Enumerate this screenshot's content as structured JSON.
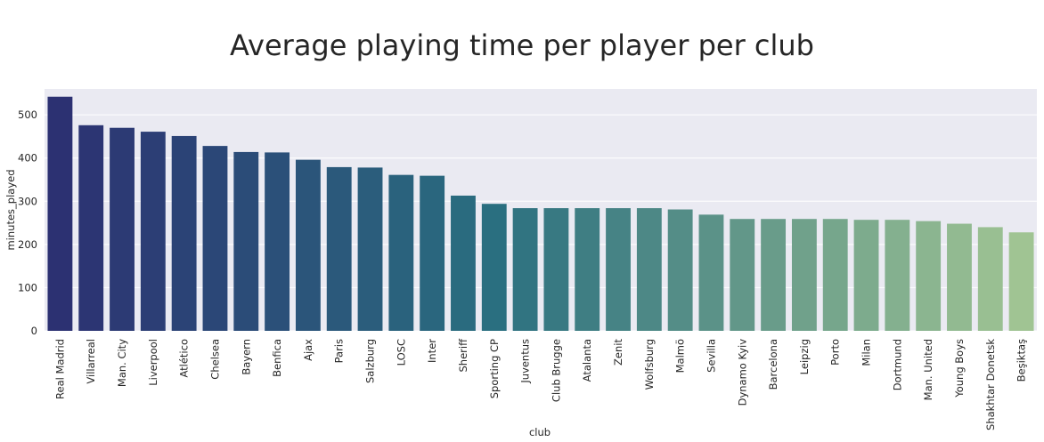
{
  "chart_data": {
    "type": "bar",
    "title": "Average playing time per player per club",
    "xlabel": "club",
    "ylabel": "minutes_played",
    "ylim": [
      0,
      560
    ],
    "yticks": [
      0,
      100,
      200,
      300,
      400,
      500
    ],
    "grid": true,
    "palette": "crest",
    "categories": [
      "Real Madrid",
      "Villarreal",
      "Man. City",
      "Liverpool",
      "Atlético",
      "Chelsea",
      "Bayern",
      "Benfica",
      "Ajax",
      "Paris",
      "Salzburg",
      "LOSC",
      "Inter",
      "Sheriff",
      "Sporting CP",
      "Juventus",
      "Club Brugge",
      "Atalanta",
      "Zenit",
      "Wolfsburg",
      "Malmö",
      "Sevilla",
      "Dynamo Kyiv",
      "Barcelona",
      "Leipzig",
      "Porto",
      "Milan",
      "Dortmund",
      "Man. United",
      "Young Boys",
      "Shakhtar Donetsk",
      "Beşiktaş"
    ],
    "values": [
      542,
      476,
      470,
      461,
      451,
      428,
      414,
      413,
      396,
      379,
      378,
      361,
      359,
      313,
      294,
      284,
      284,
      284,
      284,
      284,
      281,
      269,
      259,
      259,
      259,
      259,
      257,
      257,
      254,
      248,
      240,
      228
    ]
  },
  "colors": {
    "background": "#ffffff",
    "plot_area": "#eaeaf2",
    "grid": "#ffffff",
    "text": "#262626",
    "bar_start": "#2c3172",
    "bar_mid": "#2a6f80",
    "bar_end": "#a0c493"
  }
}
